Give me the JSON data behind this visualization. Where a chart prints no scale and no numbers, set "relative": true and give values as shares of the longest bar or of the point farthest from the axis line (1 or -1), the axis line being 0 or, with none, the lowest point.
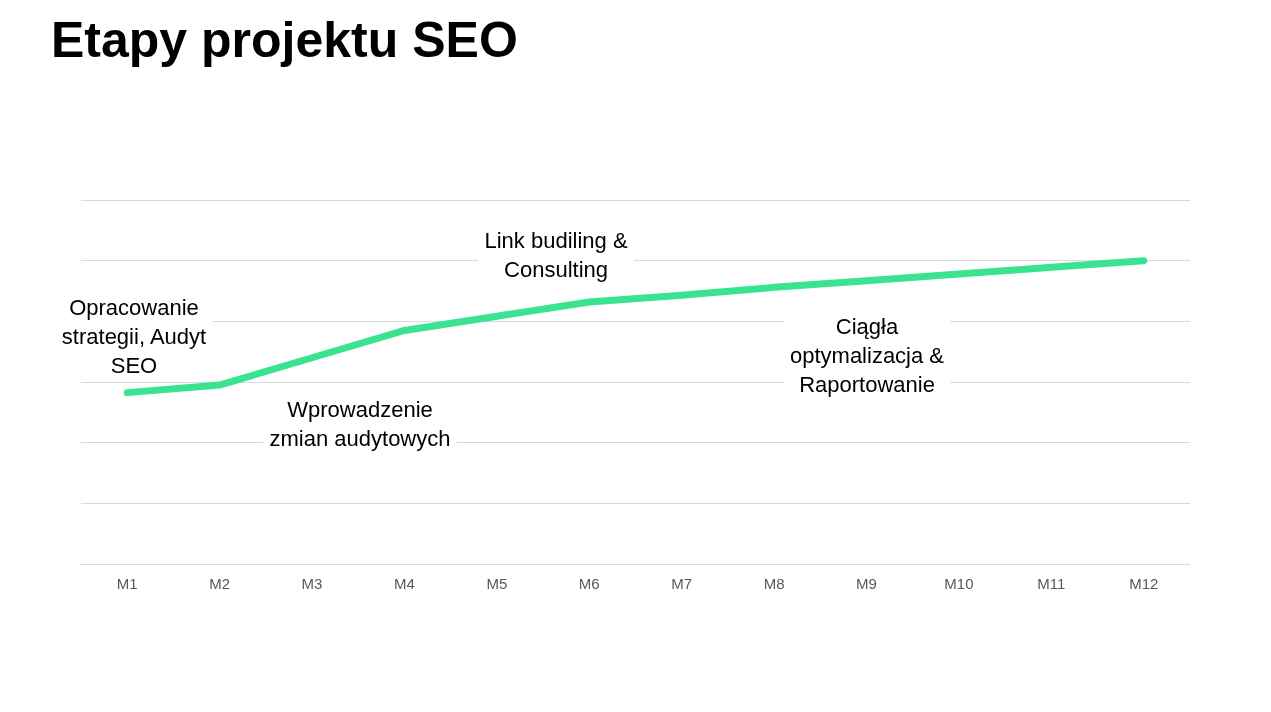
{
  "chart_data": {
    "type": "line",
    "title": "Etapy projektu SEO",
    "relative": true,
    "categories": [
      "M1",
      "M2",
      "M3",
      "M4",
      "M5",
      "M6",
      "M7",
      "M8",
      "M9",
      "M10",
      "M11",
      "M12"
    ],
    "series": [
      {
        "color": "#3ae38f",
        "values": [
          0.565,
          0.59,
          0.68,
          0.77,
          0.817,
          0.864,
          0.886,
          0.912,
          0.934,
          0.956,
          0.978,
          1
        ]
      }
    ],
    "annotations": [
      "Opracowanie\nstrategii, Audyt\nSEO",
      "Wprowadzenie\nzmian audytowych",
      "Link budiling &\nConsulting",
      "Ciągła\noptymalizacja &\nRaportowanie"
    ],
    "grid": "y",
    "marker": "none",
    "line_style": "solid"
  }
}
